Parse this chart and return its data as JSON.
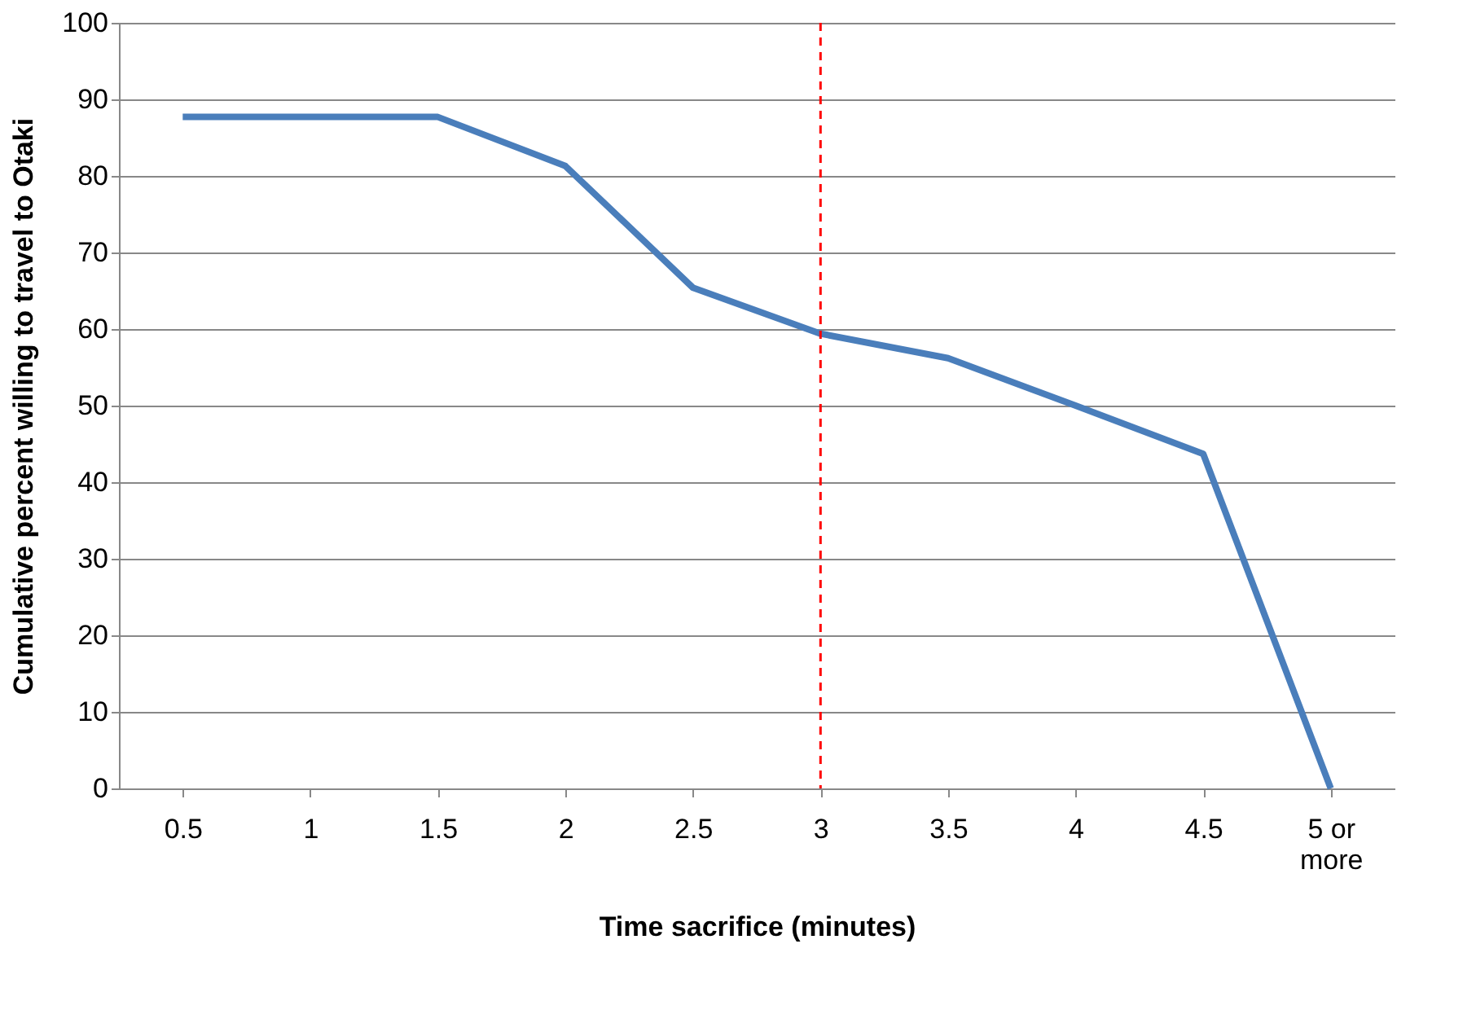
{
  "chart_data": {
    "type": "line",
    "xlabel": "Time sacrifice  (minutes)",
    "ylabel": "Cumulative percent willing to travel to Otaki",
    "categories": [
      "0.5",
      "1",
      "1.5",
      "2",
      "2.5",
      "3",
      "3.5",
      "4",
      "4.5",
      "5 or more"
    ],
    "series": [
      {
        "color": "#4a7ebb",
        "values": [
          87.7,
          87.7,
          87.7,
          81.3,
          65.4,
          59.4,
          56.2,
          50,
          43.7,
          0
        ]
      }
    ],
    "ylim": [
      0,
      100
    ],
    "yticks": [
      0,
      10,
      20,
      30,
      40,
      50,
      60,
      70,
      80,
      90,
      100
    ],
    "grid": "y",
    "marker": "none",
    "line_style": "solid",
    "ref_lines": [
      {
        "axis": "x",
        "value": "3",
        "color": "#ff0000",
        "line_style": "dashed"
      }
    ]
  }
}
